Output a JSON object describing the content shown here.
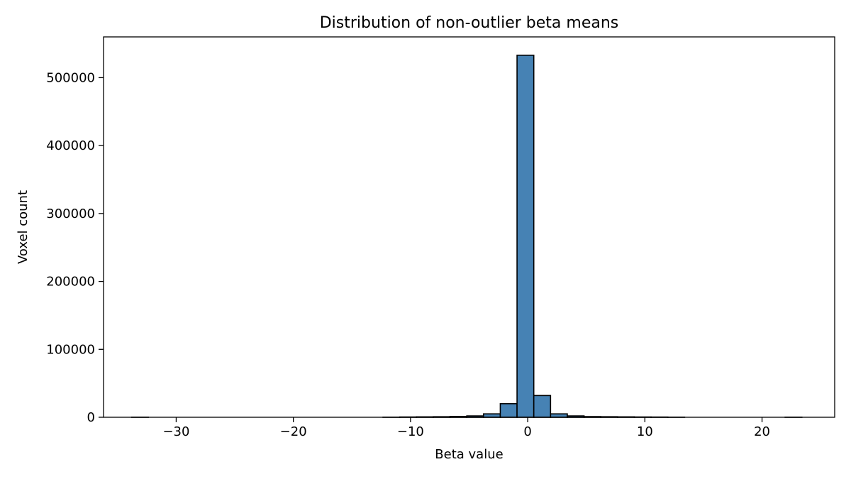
{
  "chart_data": {
    "type": "bar",
    "title": "Distribution of non-outlier beta means",
    "xlabel": "Beta value",
    "ylabel": "Voxel count",
    "xlim": [
      -36.2,
      26.2
    ],
    "ylim": [
      0,
      560000
    ],
    "xticks": [
      -30,
      -20,
      -10,
      0,
      10,
      20
    ],
    "xtick_labels": [
      "−30",
      "−20",
      "−10",
      "0",
      "10",
      "20"
    ],
    "yticks": [
      0,
      100000,
      200000,
      300000,
      400000,
      500000
    ],
    "ytick_labels": [
      "0",
      "100000",
      "200000",
      "300000",
      "400000",
      "500000"
    ],
    "grid": false,
    "bar_color": "#4682b4",
    "edge_color": "#000000",
    "bin_edges": [
      -33.8,
      -32.37,
      -30.94,
      -29.51,
      -28.08,
      -26.65,
      -25.22,
      -23.79,
      -22.36,
      -20.93,
      -19.5,
      -18.07,
      -16.64,
      -15.21,
      -13.78,
      -12.35,
      -10.92,
      -9.49,
      -8.06,
      -6.63,
      -5.2,
      -3.77,
      -2.34,
      -0.91,
      0.52,
      1.95,
      3.38,
      4.81,
      6.24,
      7.67,
      9.1,
      10.53,
      11.96,
      13.39,
      14.82,
      16.25,
      17.68,
      19.11,
      20.54,
      21.97,
      23.4
    ],
    "counts": [
      30,
      0,
      0,
      0,
      0,
      0,
      0,
      0,
      0,
      0,
      0,
      0,
      0,
      0,
      0,
      50,
      400,
      600,
      800,
      1200,
      2000,
      5000,
      20000,
      533000,
      32000,
      5000,
      2000,
      1000,
      800,
      600,
      400,
      300,
      50,
      0,
      0,
      0,
      0,
      0,
      0,
      30
    ]
  }
}
